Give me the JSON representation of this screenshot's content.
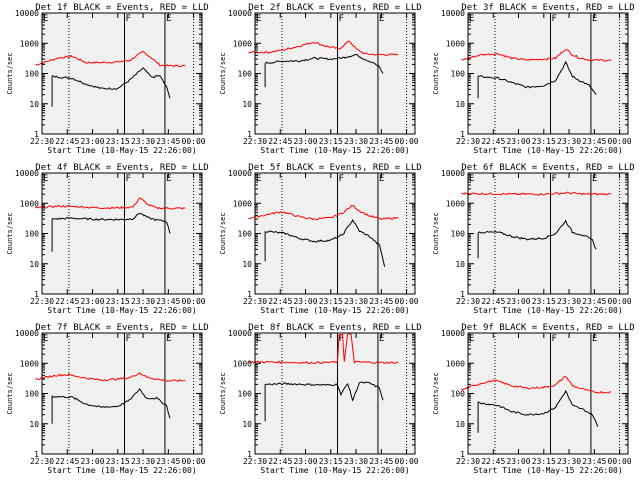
{
  "figure": {
    "background": "#ffffff",
    "frame_bg": "#f0f0f0",
    "colors": {
      "events": "#000000",
      "lld": "#ff0000",
      "axis": "#000000"
    },
    "start_label": "Start Time (10-May-15 22:26:00)",
    "ylabel": "Counts/sec",
    "xticks": [
      "22:30",
      "22:45",
      "23:00",
      "23:15",
      "23:30",
      "23:45",
      "00:00"
    ],
    "yticks": [
      "1",
      "10",
      "100",
      "1000",
      "10000"
    ]
  },
  "chart_data": [
    {
      "type": "line",
      "title": "Det 1f BLACK = Events, RED = LLD",
      "ylabel": "Counts/sec",
      "xlabel": "Start Time (10-May-15 22:26:00)",
      "ylim": [
        1,
        10000
      ],
      "log_y": true,
      "x_range": [
        "22:30",
        "00:05"
      ],
      "markers": {
        "F": "23:19",
        "E": "23:43"
      },
      "dotted_times": [
        "22:46",
        "00:00"
      ],
      "series": [
        {
          "role": "lld",
          "x": [
            "22:26",
            "22:40",
            "22:48",
            "22:56",
            "23:05",
            "23:15",
            "23:22",
            "23:30",
            "23:35",
            "23:40",
            "23:46",
            "23:55"
          ],
          "values": [
            190,
            330,
            370,
            230,
            230,
            240,
            270,
            520,
            330,
            190,
            180,
            180
          ]
        },
        {
          "role": "events",
          "x": [
            "22:36",
            "22:36",
            "22:48",
            "22:56",
            "23:05",
            "23:15",
            "23:22",
            "23:30",
            "23:35",
            "23:40",
            "23:44",
            "23:46"
          ],
          "values": [
            8,
            80,
            70,
            45,
            32,
            32,
            60,
            150,
            75,
            85,
            35,
            15
          ]
        }
      ]
    },
    {
      "type": "line",
      "title": "Det 2f BLACK = Events, RED = LLD",
      "ylabel": "Counts/sec",
      "xlabel": "Start Time (10-May-15 22:26:00)",
      "ylim": [
        1,
        10000
      ],
      "log_y": true,
      "x_range": [
        "22:30",
        "00:05"
      ],
      "markers": {
        "F": "23:19",
        "E": "23:43"
      },
      "dotted_times": [
        "22:46",
        "00:00"
      ],
      "series": [
        {
          "role": "lld",
          "x": [
            "22:26",
            "22:38",
            "22:48",
            "22:56",
            "23:05",
            "23:12",
            "23:20",
            "23:26",
            "23:30",
            "23:35",
            "23:42",
            "23:55"
          ],
          "values": [
            500,
            500,
            620,
            800,
            1100,
            800,
            650,
            1200,
            650,
            450,
            420,
            420
          ]
        },
        {
          "role": "events",
          "x": [
            "22:36",
            "22:36",
            "22:48",
            "22:56",
            "23:05",
            "23:15",
            "23:22",
            "23:30",
            "23:35",
            "23:40",
            "23:44",
            "23:46"
          ],
          "values": [
            35,
            220,
            260,
            260,
            320,
            300,
            330,
            420,
            300,
            230,
            160,
            100
          ]
        }
      ]
    },
    {
      "type": "line",
      "title": "Det 3f BLACK = Events, RED = LLD",
      "ylabel": "Counts/sec",
      "xlabel": "Start Time (10-May-15 22:26:00)",
      "ylim": [
        1,
        10000
      ],
      "log_y": true,
      "x_range": [
        "22:30",
        "00:05"
      ],
      "markers": {
        "F": "23:19",
        "E": "23:43"
      },
      "dotted_times": [
        "22:46",
        "00:00"
      ],
      "series": [
        {
          "role": "lld",
          "x": [
            "22:26",
            "22:38",
            "22:48",
            "22:56",
            "23:05",
            "23:15",
            "23:22",
            "23:28",
            "23:32",
            "23:36",
            "23:42",
            "23:55"
          ],
          "values": [
            280,
            420,
            450,
            320,
            280,
            300,
            320,
            650,
            420,
            330,
            280,
            270
          ]
        },
        {
          "role": "events",
          "x": [
            "22:36",
            "22:36",
            "22:48",
            "22:56",
            "23:05",
            "23:15",
            "23:22",
            "23:28",
            "23:32",
            "23:36",
            "23:42",
            "23:46"
          ],
          "values": [
            15,
            80,
            70,
            50,
            35,
            40,
            60,
            230,
            80,
            60,
            40,
            20
          ]
        }
      ]
    },
    {
      "type": "line",
      "title": "Det 4f BLACK = Events, RED = LLD",
      "ylabel": "Counts/sec",
      "xlabel": "Start Time (10-May-15 22:26:00)",
      "ylim": [
        1,
        10000
      ],
      "log_y": true,
      "x_range": [
        "22:30",
        "00:05"
      ],
      "markers": {
        "F": "23:19",
        "E": "23:43"
      },
      "dotted_times": [
        "22:46",
        "00:00"
      ],
      "series": [
        {
          "role": "lld",
          "x": [
            "22:26",
            "22:40",
            "22:50",
            "23:00",
            "23:10",
            "23:18",
            "23:24",
            "23:28",
            "23:33",
            "23:38",
            "23:45",
            "23:55"
          ],
          "values": [
            700,
            800,
            780,
            720,
            700,
            720,
            750,
            1500,
            900,
            700,
            680,
            680
          ]
        },
        {
          "role": "events",
          "x": [
            "22:36",
            "22:36",
            "22:48",
            "22:58",
            "23:08",
            "23:18",
            "23:24",
            "23:28",
            "23:33",
            "23:38",
            "23:44",
            "23:46"
          ],
          "values": [
            25,
            300,
            320,
            300,
            290,
            290,
            310,
            480,
            330,
            280,
            250,
            100
          ]
        }
      ]
    },
    {
      "type": "line",
      "title": "Det 5f BLACK = Events, RED = LLD",
      "ylabel": "Counts/sec",
      "xlabel": "Start Time (10-May-15 22:26:00)",
      "ylim": [
        1,
        10000
      ],
      "log_y": true,
      "x_range": [
        "22:30",
        "00:05"
      ],
      "markers": {
        "F": "23:19",
        "E": "23:43"
      },
      "dotted_times": [
        "22:46",
        "00:00"
      ],
      "series": [
        {
          "role": "lld",
          "x": [
            "22:26",
            "22:38",
            "22:46",
            "22:56",
            "23:05",
            "23:15",
            "23:22",
            "23:28",
            "23:32",
            "23:38",
            "23:45",
            "23:55"
          ],
          "values": [
            320,
            430,
            530,
            360,
            300,
            330,
            480,
            850,
            560,
            380,
            300,
            330
          ]
        },
        {
          "role": "events",
          "x": [
            "22:36",
            "22:36",
            "22:48",
            "22:56",
            "23:05",
            "23:15",
            "23:22",
            "23:28",
            "23:32",
            "23:38",
            "23:44",
            "23:47"
          ],
          "values": [
            12,
            120,
            100,
            70,
            55,
            60,
            90,
            280,
            120,
            80,
            40,
            8
          ]
        }
      ]
    },
    {
      "type": "line",
      "title": "Det 6f BLACK = Events, RED = LLD",
      "ylabel": "Counts/sec",
      "xlabel": "Start Time (10-May-15 22:26:00)",
      "ylim": [
        1,
        10000
      ],
      "log_y": true,
      "x_range": [
        "22:30",
        "00:05"
      ],
      "markers": {
        "F": "23:19",
        "E": "23:43"
      },
      "dotted_times": [
        "22:46",
        "00:00"
      ],
      "series": [
        {
          "role": "lld",
          "x": [
            "22:26",
            "22:45",
            "23:00",
            "23:15",
            "23:30",
            "23:40",
            "23:55"
          ],
          "values": [
            2100,
            2050,
            2000,
            2000,
            2200,
            2000,
            2000
          ]
        },
        {
          "role": "events",
          "x": [
            "22:36",
            "22:36",
            "22:48",
            "22:56",
            "23:05",
            "23:15",
            "23:22",
            "23:28",
            "23:32",
            "23:38",
            "23:44",
            "23:46"
          ],
          "values": [
            15,
            110,
            110,
            80,
            65,
            70,
            100,
            260,
            110,
            90,
            60,
            30
          ]
        }
      ]
    },
    {
      "type": "line",
      "title": "Det 7f BLACK = Events, RED = LLD",
      "ylabel": "Counts/sec",
      "xlabel": "Start Time (10-May-15 22:26:00)",
      "ylim": [
        1,
        10000
      ],
      "log_y": true,
      "x_range": [
        "22:30",
        "00:05"
      ],
      "markers": {
        "F": "23:19",
        "E": "23:43"
      },
      "dotted_times": [
        "22:46",
        "00:00"
      ],
      "series": [
        {
          "role": "lld",
          "x": [
            "22:26",
            "22:38",
            "22:46",
            "22:56",
            "23:05",
            "23:15",
            "23:22",
            "23:28",
            "23:32",
            "23:38",
            "23:45",
            "23:55"
          ],
          "values": [
            290,
            400,
            420,
            320,
            280,
            300,
            330,
            480,
            350,
            300,
            260,
            270
          ]
        },
        {
          "role": "events",
          "x": [
            "22:36",
            "22:36",
            "22:48",
            "22:56",
            "23:05",
            "23:15",
            "23:22",
            "23:28",
            "23:32",
            "23:38",
            "23:44",
            "23:46"
          ],
          "values": [
            10,
            80,
            75,
            45,
            35,
            38,
            60,
            140,
            70,
            70,
            40,
            15
          ]
        }
      ]
    },
    {
      "type": "line",
      "title": "Det 8f BLACK = Events, RED = LLD",
      "ylabel": "Counts/sec",
      "xlabel": "Start Time (10-May-15 22:26:00)",
      "ylim": [
        1,
        10000
      ],
      "log_y": true,
      "x_range": [
        "22:30",
        "00:05"
      ],
      "markers": {
        "F": "23:19",
        "E": "23:43"
      },
      "dotted_times": [
        "22:46",
        "00:00"
      ],
      "series": [
        {
          "role": "lld",
          "x": [
            "22:26",
            "22:40",
            "22:55",
            "23:10",
            "23:19",
            "23:20",
            "23:22",
            "23:23",
            "23:25",
            "23:27",
            "23:29",
            "23:45",
            "23:55"
          ],
          "values": [
            1100,
            1100,
            1050,
            1050,
            1100,
            9000,
            9000,
            1100,
            9000,
            9000,
            1100,
            1050,
            1050
          ]
        },
        {
          "role": "events",
          "x": [
            "22:36",
            "22:36",
            "22:48",
            "23:00",
            "23:12",
            "23:19",
            "23:21",
            "23:25",
            "23:28",
            "23:32",
            "23:38",
            "23:44",
            "23:46"
          ],
          "values": [
            12,
            200,
            210,
            200,
            190,
            200,
            90,
            220,
            60,
            230,
            220,
            150,
            60
          ]
        }
      ]
    },
    {
      "type": "line",
      "title": "Det 9f BLACK = Events, RED = LLD",
      "ylabel": "Counts/sec",
      "xlabel": "Start Time (10-May-15 22:26:00)",
      "ylim": [
        1,
        10000
      ],
      "log_y": true,
      "x_range": [
        "22:30",
        "00:05"
      ],
      "markers": {
        "F": "23:19",
        "E": "23:43"
      },
      "dotted_times": [
        "22:46",
        "00:00"
      ],
      "series": [
        {
          "role": "lld",
          "x": [
            "22:26",
            "22:38",
            "22:46",
            "22:56",
            "23:05",
            "23:15",
            "23:22",
            "23:28",
            "23:32",
            "23:38",
            "23:45",
            "23:55"
          ],
          "values": [
            130,
            220,
            270,
            180,
            150,
            160,
            190,
            380,
            180,
            140,
            110,
            110
          ]
        },
        {
          "role": "events",
          "x": [
            "22:36",
            "22:36",
            "22:48",
            "22:56",
            "23:05",
            "23:15",
            "23:22",
            "23:28",
            "23:32",
            "23:38",
            "23:44",
            "23:47"
          ],
          "values": [
            5,
            50,
            40,
            25,
            20,
            22,
            35,
            120,
            40,
            30,
            20,
            8
          ]
        }
      ]
    }
  ]
}
